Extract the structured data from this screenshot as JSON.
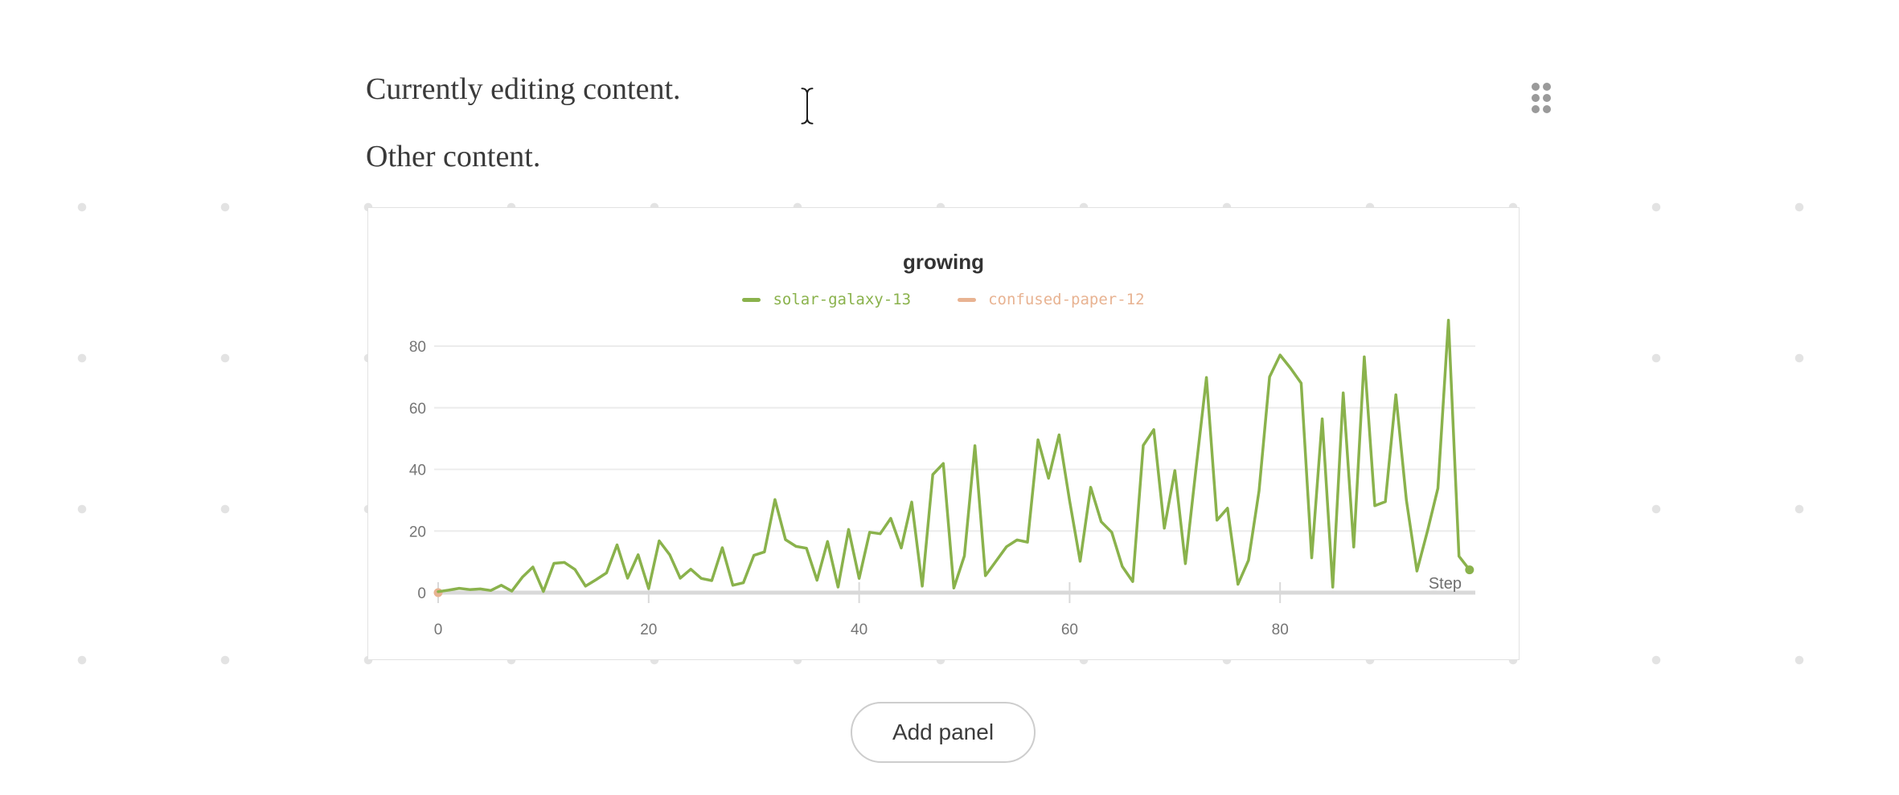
{
  "document": {
    "paragraph1": "Currently editing content.",
    "paragraph2": "Other content."
  },
  "panel_grid": {
    "add_panel_label": "Add panel"
  },
  "chart_data": {
    "type": "line",
    "title": "growing",
    "xlabel": "Step",
    "ylabel": "",
    "xlim": [
      0,
      98.5
    ],
    "ylim": [
      0,
      88.5
    ],
    "x_ticks": [
      0,
      20,
      40,
      60,
      80
    ],
    "y_ticks": [
      0,
      20,
      40,
      60,
      80
    ],
    "grid": "horizontal",
    "legend_position": "top",
    "series": [
      {
        "name": "solar-galaxy-13",
        "color": "#8ab24c",
        "end_marker": true,
        "x": [
          0,
          1,
          2,
          3,
          4,
          5,
          6,
          7,
          8,
          9,
          10,
          11,
          12,
          13,
          14,
          15,
          16,
          17,
          18,
          19,
          20,
          21,
          22,
          23,
          24,
          25,
          26,
          27,
          28,
          29,
          30,
          31,
          32,
          33,
          34,
          35,
          36,
          37,
          38,
          39,
          40,
          41,
          42,
          43,
          44,
          45,
          46,
          47,
          48,
          49,
          50,
          51,
          52,
          53,
          54,
          55,
          56,
          57,
          58,
          59,
          60,
          61,
          62,
          63,
          64,
          65,
          66,
          67,
          68,
          69,
          70,
          71,
          72,
          73,
          74,
          75,
          76,
          77,
          78,
          79,
          80,
          81,
          82,
          83,
          84,
          85,
          86,
          87,
          88,
          89,
          90,
          91,
          92,
          93,
          94,
          95,
          96,
          97,
          98
        ],
        "y": [
          0.3,
          0.8,
          1.4,
          1.0,
          1.2,
          0.7,
          2.4,
          0.5,
          5.0,
          8.3,
          0.4,
          9.5,
          9.8,
          7.5,
          2.1,
          4.2,
          6.4,
          15.5,
          4.7,
          12.3,
          1.3,
          16.8,
          12.3,
          4.7,
          7.6,
          4.6,
          3.9,
          14.6,
          2.4,
          3.2,
          12.1,
          13.2,
          30.2,
          17.2,
          15.0,
          14.4,
          4.0,
          16.6,
          1.8,
          20.5,
          4.6,
          19.6,
          19.1,
          24.1,
          14.5,
          29.4,
          2.1,
          38.3,
          41.9,
          1.5,
          11.9,
          47.7,
          5.5,
          10.2,
          14.9,
          17.1,
          16.4,
          49.6,
          37.1,
          51.2,
          29.8,
          10.2,
          34.2,
          23.0,
          19.6,
          8.5,
          3.6,
          47.8,
          52.9,
          20.9,
          39.6,
          9.4,
          40.0,
          69.8,
          23.5,
          27.4,
          2.7,
          10.5,
          33.0,
          70.0,
          77.1,
          72.8,
          68.0,
          11.3,
          56.4,
          1.8,
          64.8,
          14.8,
          76.5,
          28.2,
          29.5,
          64.2,
          30.0,
          7.0,
          20.0,
          33.9,
          88.4,
          11.8,
          7.4
        ]
      },
      {
        "name": "confused-paper-12",
        "color": "#e8b392",
        "end_marker": true,
        "x": [
          0
        ],
        "y": [
          0
        ]
      }
    ],
    "colors": {
      "gridline": "#ececec",
      "axis_line": "#d9d9d9",
      "tick_label": "#757575",
      "axis_label": "#6e6e6e"
    }
  }
}
